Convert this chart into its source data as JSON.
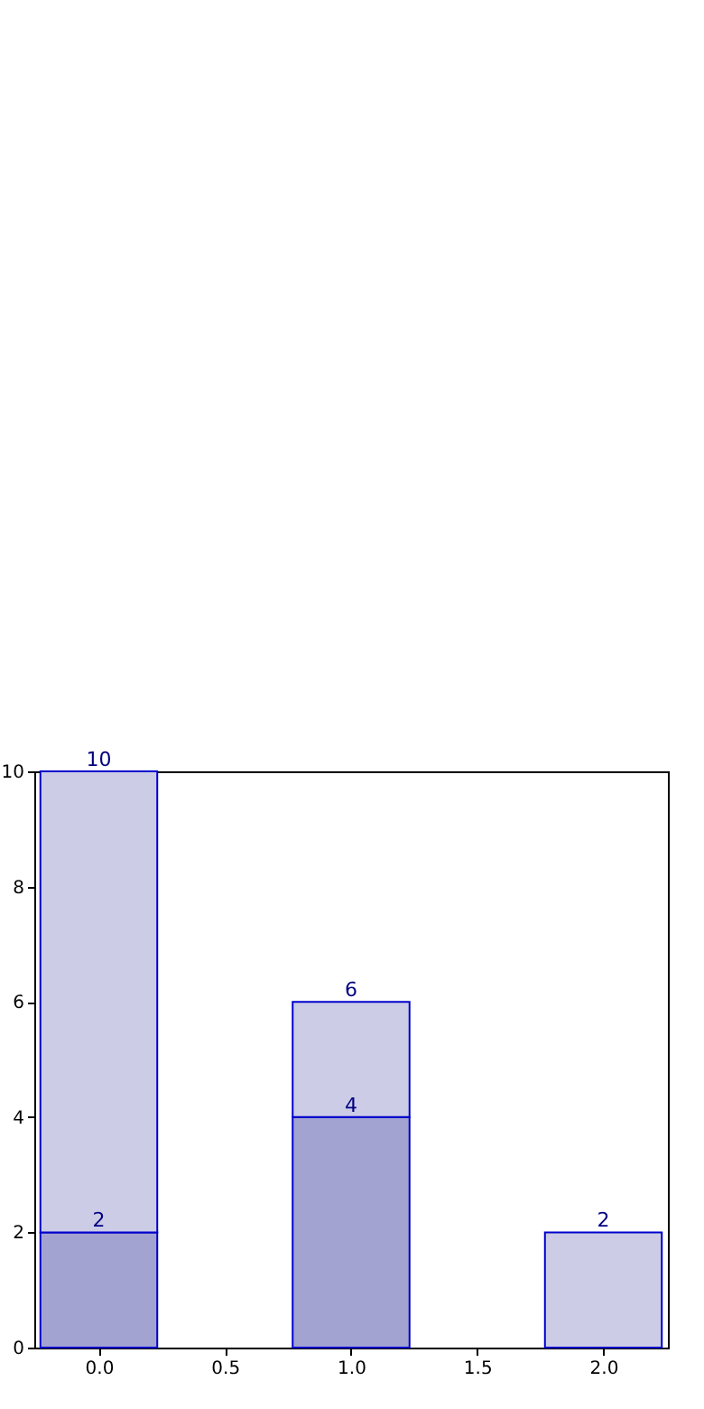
{
  "chart_data": {
    "type": "bar",
    "x": [
      0,
      1,
      2
    ],
    "stacked": true,
    "series": [
      {
        "color": "#a3a3d1",
        "values": [
          2,
          4,
          null
        ],
        "value_labels": [
          "2",
          "4",
          null
        ]
      },
      {
        "color": "#cccce6",
        "values": [
          8,
          2,
          2
        ]
      }
    ],
    "totals": [
      "10",
      "6",
      "2"
    ],
    "xlim": [
      -0.22,
      2.22
    ],
    "ylim": [
      0,
      10
    ],
    "xticks": [
      {
        "value": 0,
        "label": "0.0"
      },
      {
        "value": 0.5,
        "label": "0.5"
      },
      {
        "value": 1,
        "label": "1.0"
      },
      {
        "value": 1.5,
        "label": "1.5"
      },
      {
        "value": 2,
        "label": "2.0"
      }
    ],
    "yticks": [
      0,
      2,
      4,
      6,
      8,
      10
    ],
    "grid": false
  }
}
